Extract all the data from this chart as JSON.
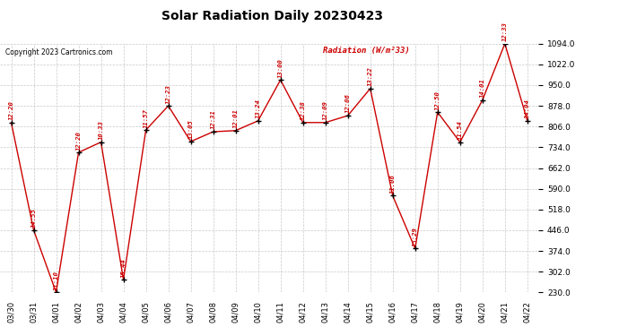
{
  "title": "Solar Radiation Daily 20230423",
  "copyright": "Copyright 2023 Cartronics.com",
  "legend_label": "Radiation (W/m²33)",
  "dates": [
    "03/30",
    "03/31",
    "04/01",
    "04/02",
    "04/03",
    "04/04",
    "04/05",
    "04/06",
    "04/07",
    "04/08",
    "04/09",
    "04/10",
    "04/11",
    "04/12",
    "04/13",
    "04/14",
    "04/15",
    "04/16",
    "04/17",
    "04/18",
    "04/19",
    "04/20",
    "04/21",
    "04/22"
  ],
  "values": [
    820,
    446,
    230,
    716,
    752,
    274,
    794,
    878,
    754,
    788,
    792,
    826,
    968,
    820,
    820,
    844,
    938,
    566,
    382,
    856,
    752,
    898,
    1094,
    826
  ],
  "labels": [
    "12:20",
    "14:55",
    "11:10",
    "12:20",
    "10:33",
    "15:44",
    "11:57",
    "12:23",
    "13:05",
    "12:31",
    "12:01",
    "13:24",
    "13:00",
    "12:38",
    "12:09",
    "12:06",
    "13:22",
    "11:06",
    "15:29",
    "12:50",
    "11:54",
    "14:01",
    "12:33",
    "14:04"
  ],
  "ylim_min": 230.0,
  "ylim_max": 1094.0,
  "yticks": [
    230.0,
    302.0,
    374.0,
    446.0,
    518.0,
    590.0,
    662.0,
    734.0,
    806.0,
    878.0,
    950.0,
    1022.0,
    1094.0
  ],
  "line_color": "#cc0000",
  "marker_color": "#000000",
  "title_color": "#000000",
  "copyright_color": "#000000",
  "legend_color": "#cc0000",
  "background_color": "#ffffff",
  "grid_color": "#bbbbbb"
}
